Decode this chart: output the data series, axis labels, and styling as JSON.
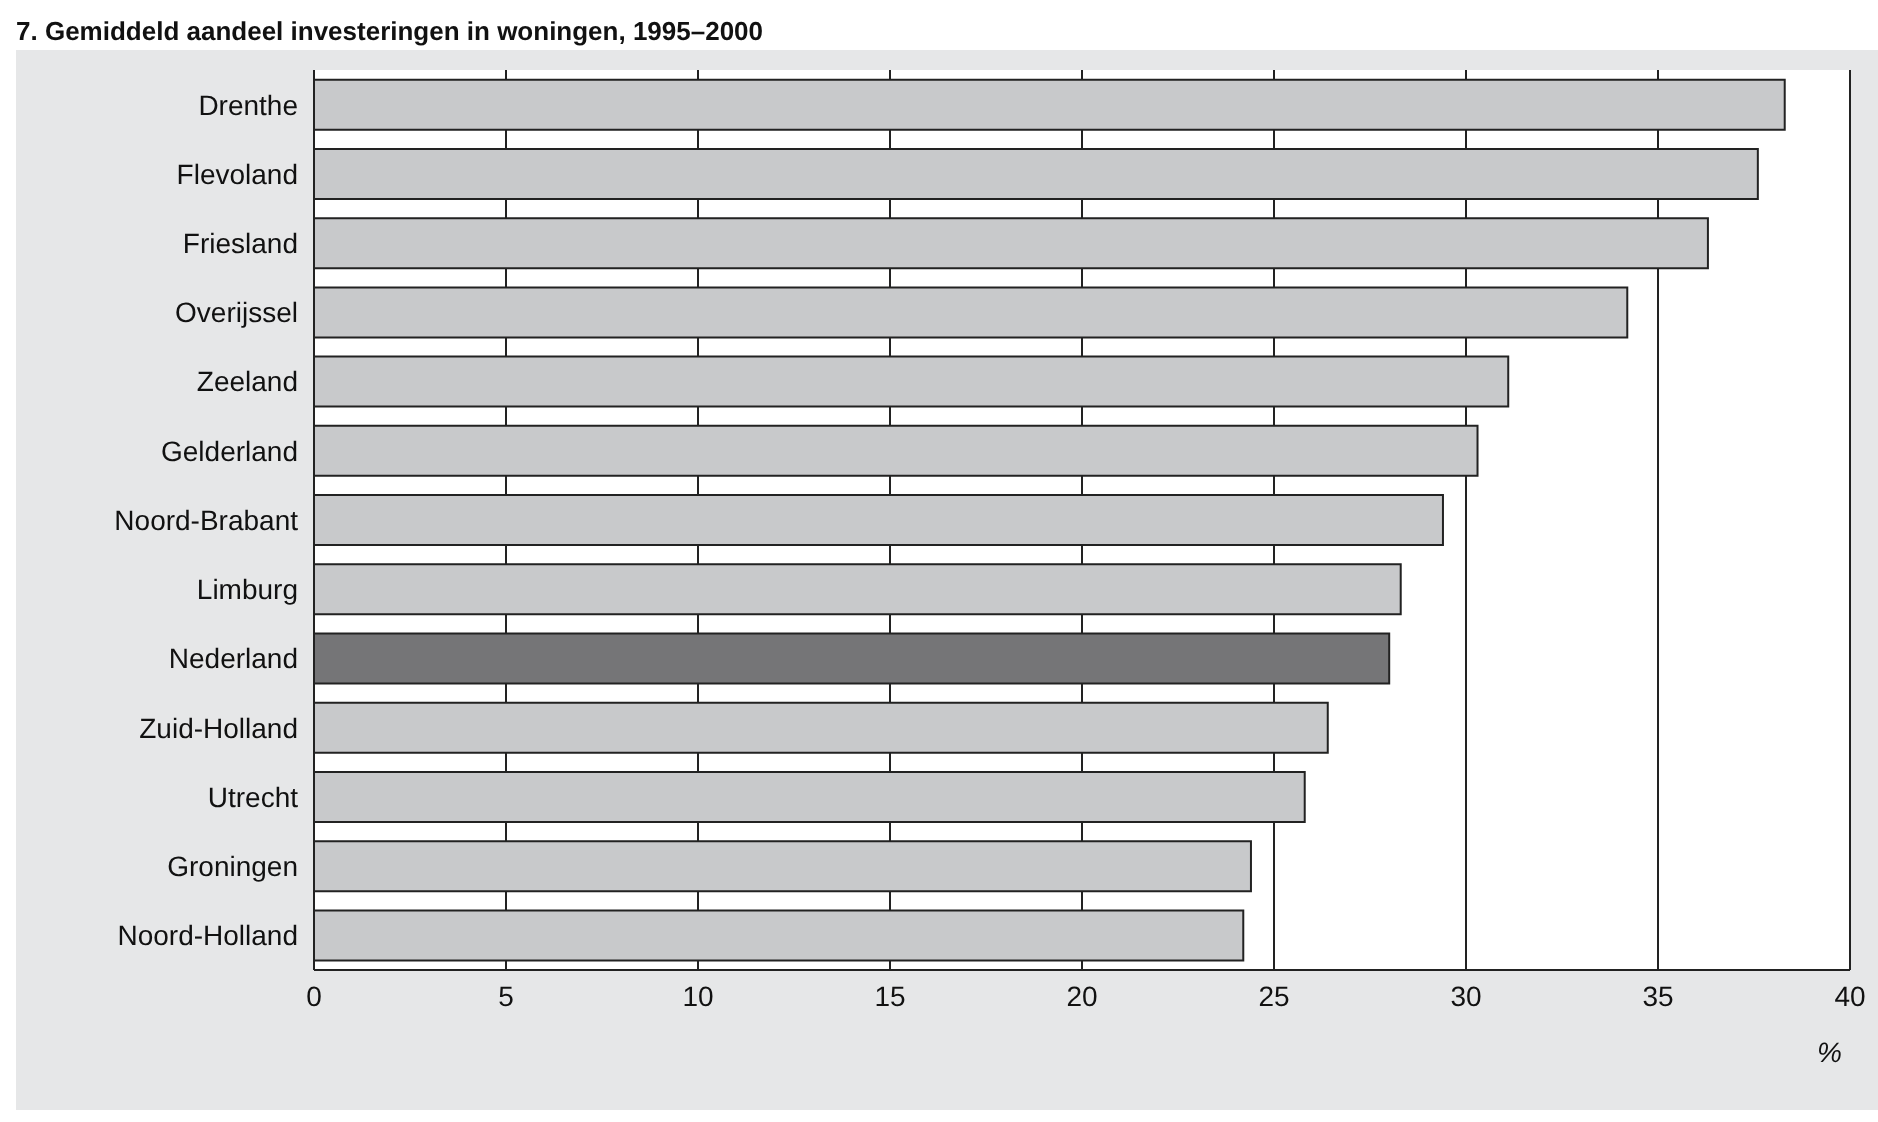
{
  "chart_data": {
    "type": "bar",
    "orientation": "horizontal",
    "title": "7. Gemiddeld aandeel investeringen in woningen, 1995–2000",
    "xlabel": "%",
    "categories": [
      "Drenthe",
      "Flevoland",
      "Friesland",
      "Overijssel",
      "Zeeland",
      "Gelderland",
      "Noord-Brabant",
      "Limburg",
      "Nederland",
      "Zuid-Holland",
      "Utrecht",
      "Groningen",
      "Noord-Holland"
    ],
    "values": [
      38.3,
      37.6,
      36.3,
      34.2,
      31.1,
      30.3,
      29.4,
      28.3,
      28.0,
      26.4,
      25.8,
      24.4,
      24.2
    ],
    "colors": [
      "#c8c9cb",
      "#c8c9cb",
      "#c8c9cb",
      "#c8c9cb",
      "#c8c9cb",
      "#c8c9cb",
      "#c8c9cb",
      "#c8c9cb",
      "#757577",
      "#c8c9cb",
      "#c8c9cb",
      "#c8c9cb",
      "#c8c9cb"
    ],
    "xlim": [
      0,
      40
    ],
    "xticks": [
      0,
      5,
      10,
      15,
      20,
      25,
      30,
      35,
      40
    ],
    "grid": "x"
  }
}
